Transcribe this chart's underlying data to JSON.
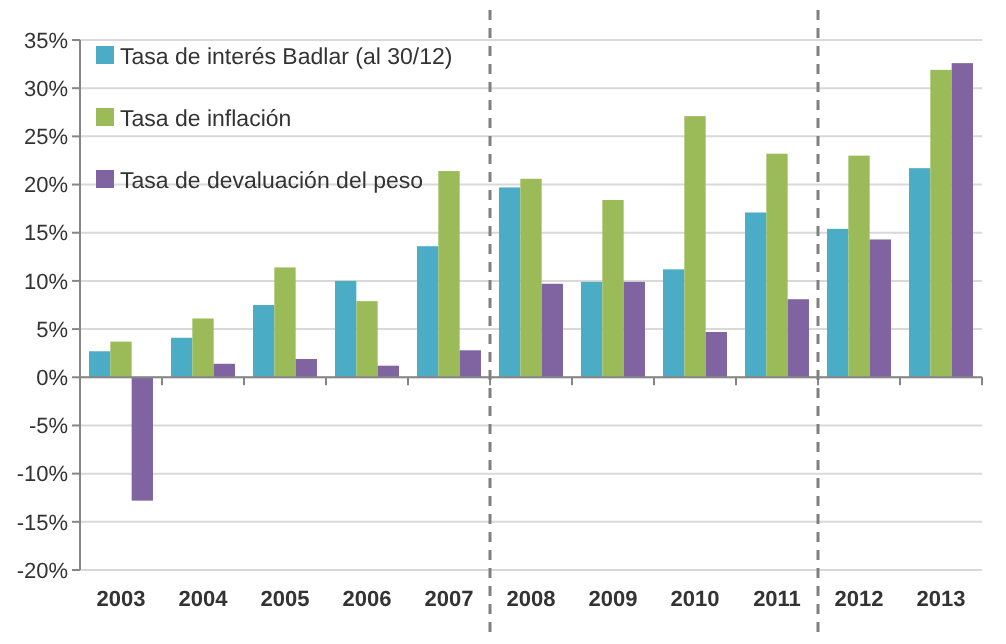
{
  "chart_data": {
    "type": "bar",
    "categories": [
      "2003",
      "2004",
      "2005",
      "2006",
      "2007",
      "2008",
      "2009",
      "2010",
      "2011",
      "2012",
      "2013"
    ],
    "series": [
      {
        "name": "Tasa de interés Badlar (al 30/12)",
        "color": "#4bacc6",
        "values": [
          2.7,
          4.1,
          7.5,
          10.0,
          13.6,
          19.7,
          9.9,
          11.2,
          17.1,
          15.4,
          21.7
        ]
      },
      {
        "name": "Tasa de inflación",
        "color": "#9bbb59",
        "values": [
          3.7,
          6.1,
          11.4,
          7.9,
          21.4,
          20.6,
          18.4,
          27.1,
          23.2,
          23.0,
          31.9
        ]
      },
      {
        "name": "Tasa de devaluación del peso",
        "color": "#8064a2",
        "values": [
          -12.8,
          1.4,
          1.9,
          1.2,
          2.8,
          9.7,
          9.9,
          4.7,
          8.1,
          14.3,
          32.6
        ]
      }
    ],
    "ylim": [
      -20,
      35
    ],
    "yticks": [
      {
        "value": -20,
        "label": "-20%"
      },
      {
        "value": -15,
        "label": "-15%"
      },
      {
        "value": -10,
        "label": "-10%"
      },
      {
        "value": -5,
        "label": "-5%"
      },
      {
        "value": 0,
        "label": "0%"
      },
      {
        "value": 5,
        "label": "5%"
      },
      {
        "value": 10,
        "label": "10%"
      },
      {
        "value": 15,
        "label": "15%"
      },
      {
        "value": 20,
        "label": "20%"
      },
      {
        "value": 25,
        "label": "25%"
      },
      {
        "value": 30,
        "label": "30%"
      },
      {
        "value": 35,
        "label": "35%"
      }
    ],
    "grid": "y",
    "legend": "top left"
  }
}
